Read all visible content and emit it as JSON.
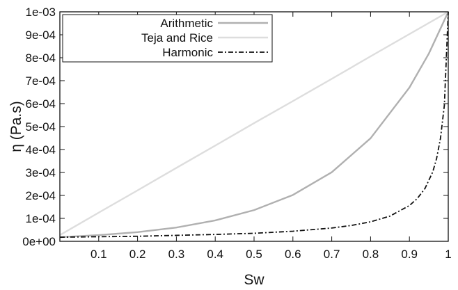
{
  "chart_data": {
    "type": "line",
    "xlabel": "Sw",
    "ylabel": "η (Pa.s)",
    "xlim": [
      0,
      1
    ],
    "ylim": [
      0,
      0.001
    ],
    "x_ticks": [
      0.1,
      0.2,
      0.3,
      0.4,
      0.5,
      0.6,
      0.7,
      0.8,
      0.9,
      1
    ],
    "x_tick_labels": [
      "0.1",
      "0.2",
      "0.3",
      "0.4",
      "0.5",
      "0.6",
      "0.7",
      "0.8",
      "0.9",
      "1"
    ],
    "y_ticks": [
      0,
      0.0001,
      0.0002,
      0.0003,
      0.0004,
      0.0005,
      0.0006,
      0.0007,
      0.0008,
      0.0009,
      0.001
    ],
    "y_tick_labels": [
      "0e+00",
      "1e-04",
      "2e-04",
      "3e-04",
      "4e-04",
      "5e-04",
      "6e-04",
      "7e-04",
      "8e-04",
      "9e-04",
      "1e-03"
    ],
    "grid": false,
    "legend_position": "top-left",
    "series": [
      {
        "name": "Arithmetic",
        "color": "#b0b0b0",
        "style": "solid",
        "x": [
          0,
          0.1,
          0.2,
          0.3,
          0.4,
          0.5,
          0.6,
          0.7,
          0.8,
          0.9,
          0.95,
          1
        ],
        "y": [
          1.8e-05,
          2.7e-05,
          4e-05,
          6e-05,
          9.1e-05,
          0.000136,
          0.000202,
          0.000301,
          0.000449,
          0.00067,
          0.000818,
          0.001
        ]
      },
      {
        "name": "Teja and Rice",
        "color": "#dddddd",
        "style": "solid",
        "x": [
          0,
          0.1,
          0.2,
          0.3,
          0.4,
          0.5,
          0.6,
          0.7,
          0.8,
          0.9,
          1
        ],
        "y": [
          2.7e-05,
          0.000125,
          0.000222,
          0.00032,
          0.000417,
          0.000515,
          0.000611,
          0.000708,
          0.000806,
          0.000903,
          0.001
        ]
      },
      {
        "name": "Harmonic",
        "color": "#111111",
        "style": "dashdot",
        "x": [
          0,
          0.1,
          0.2,
          0.3,
          0.4,
          0.5,
          0.6,
          0.7,
          0.75,
          0.8,
          0.85,
          0.9,
          0.92,
          0.94,
          0.96,
          0.97,
          0.98,
          0.99,
          1
        ],
        "y": [
          1.8e-05,
          2e-05,
          2.2e-05,
          2.6e-05,
          3e-05,
          3.5e-05,
          4.4e-05,
          5.8e-05,
          6.9e-05,
          8.5e-05,
          0.00011,
          0.000156,
          0.000186,
          0.00023,
          0.000302,
          0.000361,
          0.000449,
          0.000593,
          0.001
        ]
      }
    ]
  }
}
